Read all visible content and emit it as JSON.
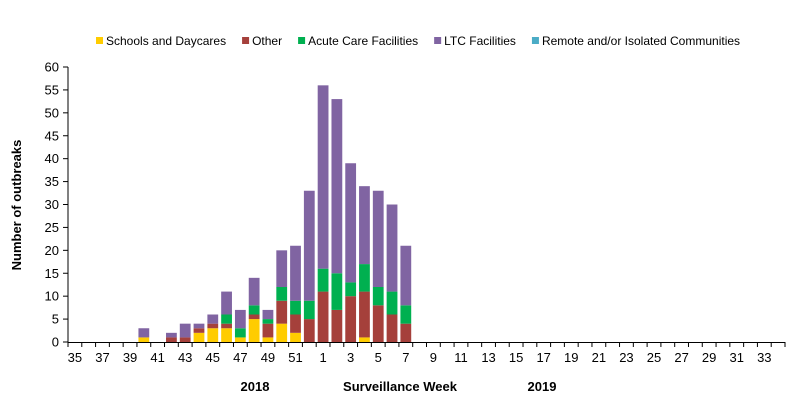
{
  "chart_data": {
    "type": "bar",
    "stacked": true,
    "xlabel": "Surveillance Week",
    "ylabel": "Number of outbreaks",
    "year_labels": [
      "2018",
      "2019"
    ],
    "ylim": [
      0,
      60
    ],
    "yticks": [
      0,
      5,
      10,
      15,
      20,
      25,
      30,
      35,
      40,
      45,
      50,
      55,
      60
    ],
    "grid": false,
    "legend_position": "top",
    "categories": [
      35,
      36,
      37,
      38,
      39,
      40,
      41,
      42,
      43,
      44,
      45,
      46,
      47,
      48,
      49,
      50,
      51,
      52,
      1,
      2,
      3,
      4,
      5,
      6,
      7,
      8,
      9,
      10,
      11,
      12,
      13,
      14,
      15,
      16,
      17,
      18,
      19,
      20,
      21,
      22,
      23,
      24,
      25,
      26,
      27,
      28,
      29,
      30,
      31,
      32,
      33,
      34
    ],
    "series": [
      {
        "name": "Schools and Daycares",
        "color": "#FFCC00",
        "values": [
          0,
          0,
          0,
          0,
          0,
          1,
          0,
          0,
          0,
          2,
          3,
          3,
          1,
          5,
          1,
          4,
          2,
          0,
          0,
          0,
          0,
          1,
          0,
          0,
          0,
          0,
          0,
          0,
          0,
          0,
          0,
          0,
          0,
          0,
          0,
          0,
          0,
          0,
          0,
          0,
          0,
          0,
          0,
          0,
          0,
          0,
          0,
          0,
          0,
          0,
          0,
          0
        ]
      },
      {
        "name": "Other",
        "color": "#A5403B",
        "values": [
          0,
          0,
          0,
          0,
          0,
          0,
          0,
          1,
          1,
          1,
          1,
          1,
          0,
          1,
          3,
          5,
          4,
          5,
          11,
          7,
          10,
          10,
          8,
          6,
          4,
          0,
          0,
          0,
          0,
          0,
          0,
          0,
          0,
          0,
          0,
          0,
          0,
          0,
          0,
          0,
          0,
          0,
          0,
          0,
          0,
          0,
          0,
          0,
          0,
          0,
          0,
          0
        ]
      },
      {
        "name": "Acute Care Facilities",
        "color": "#00B050",
        "values": [
          0,
          0,
          0,
          0,
          0,
          0,
          0,
          0,
          0,
          0,
          0,
          2,
          2,
          2,
          1,
          3,
          3,
          4,
          5,
          8,
          3,
          6,
          4,
          5,
          4,
          0,
          0,
          0,
          0,
          0,
          0,
          0,
          0,
          0,
          0,
          0,
          0,
          0,
          0,
          0,
          0,
          0,
          0,
          0,
          0,
          0,
          0,
          0,
          0,
          0,
          0,
          0
        ]
      },
      {
        "name": "LTC Facilities",
        "color": "#8064A2",
        "values": [
          0,
          0,
          0,
          0,
          0,
          2,
          0,
          1,
          3,
          1,
          2,
          5,
          4,
          6,
          2,
          8,
          12,
          24,
          40,
          38,
          26,
          17,
          21,
          19,
          13,
          0,
          0,
          0,
          0,
          0,
          0,
          0,
          0,
          0,
          0,
          0,
          0,
          0,
          0,
          0,
          0,
          0,
          0,
          0,
          0,
          0,
          0,
          0,
          0,
          0,
          0,
          0
        ]
      },
      {
        "name": "Remote and/or Isolated Communities",
        "color": "#4BACC6",
        "values": [
          0,
          0,
          0,
          0,
          0,
          0,
          0,
          0,
          0,
          0,
          0,
          0,
          0,
          0,
          0,
          0,
          0,
          0,
          0,
          0,
          0,
          0,
          0,
          0,
          0,
          0,
          0,
          0,
          0,
          0,
          0,
          0,
          0,
          0,
          0,
          0,
          0,
          0,
          0,
          0,
          0,
          0,
          0,
          0,
          0,
          0,
          0,
          0,
          0,
          0,
          0,
          0
        ]
      }
    ]
  }
}
